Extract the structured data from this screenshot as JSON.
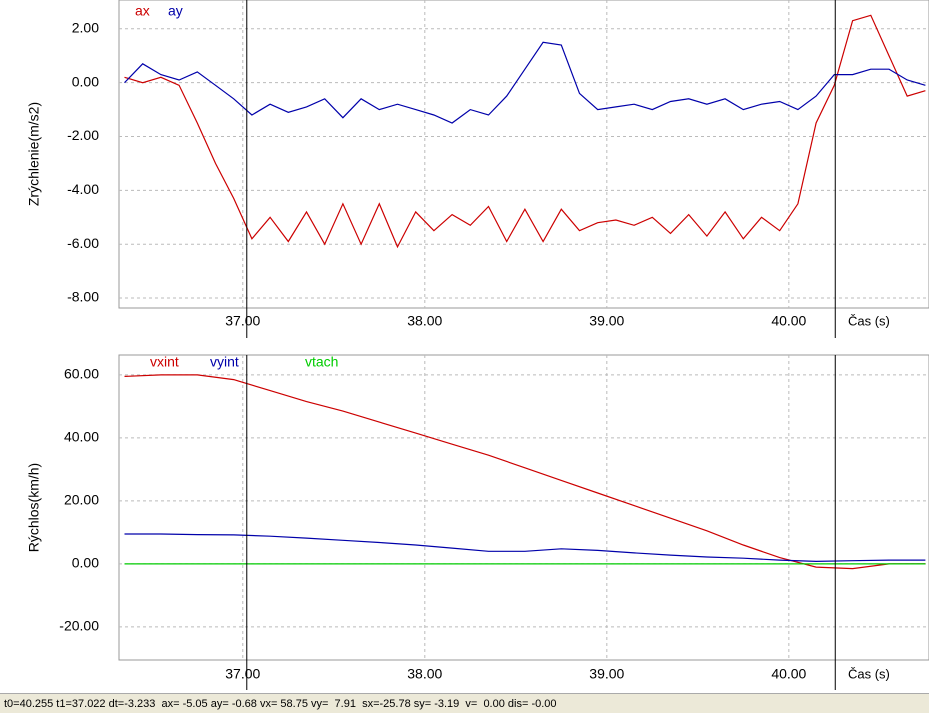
{
  "chart_data": [
    {
      "type": "line",
      "ylabel": "Zrýchlenie(m/s2)",
      "xlabel": "Čas (s)",
      "x": [
        36.35,
        36.45,
        36.55,
        36.65,
        36.75,
        36.85,
        36.95,
        37.05,
        37.15,
        37.25,
        37.35,
        37.45,
        37.55,
        37.65,
        37.75,
        37.85,
        37.95,
        38.05,
        38.15,
        38.25,
        38.35,
        38.45,
        38.55,
        38.65,
        38.75,
        38.85,
        38.95,
        39.05,
        39.15,
        39.25,
        39.35,
        39.45,
        39.55,
        39.65,
        39.75,
        39.85,
        39.95,
        40.05,
        40.15,
        40.25,
        40.35,
        40.45,
        40.55,
        40.65,
        40.75
      ],
      "series": [
        {
          "name": "ax",
          "color": "#cc0000",
          "values": [
            0.2,
            0.0,
            0.2,
            -0.1,
            -1.5,
            -3.0,
            -4.3,
            -5.8,
            -5.0,
            -5.9,
            -4.8,
            -6.0,
            -4.5,
            -6.0,
            -4.5,
            -6.1,
            -4.8,
            -5.5,
            -4.9,
            -5.3,
            -4.6,
            -5.9,
            -4.7,
            -5.9,
            -4.7,
            -5.5,
            -5.2,
            -5.1,
            -5.3,
            -5.0,
            -5.6,
            -4.9,
            -5.7,
            -4.8,
            -5.8,
            -5.0,
            -5.5,
            -4.5,
            -1.5,
            -0.1,
            2.3,
            2.5,
            1.0,
            -0.5,
            -0.3
          ]
        },
        {
          "name": "ay",
          "color": "#0000aa",
          "values": [
            0.0,
            0.7,
            0.3,
            0.1,
            0.4,
            -0.1,
            -0.6,
            -1.2,
            -0.8,
            -1.1,
            -0.9,
            -0.6,
            -1.3,
            -0.6,
            -1.0,
            -0.8,
            -1.0,
            -1.2,
            -1.5,
            -1.0,
            -1.2,
            -0.5,
            0.5,
            1.5,
            1.4,
            -0.4,
            -1.0,
            -0.9,
            -0.8,
            -1.0,
            -0.7,
            -0.6,
            -0.8,
            -0.6,
            -1.0,
            -0.8,
            -0.7,
            -1.0,
            -0.5,
            0.3,
            0.3,
            0.5,
            0.5,
            0.1,
            -0.1
          ]
        }
      ],
      "xlim": [
        36.32,
        40.77
      ],
      "xticks": [
        {
          "value": 37,
          "label": "37.00"
        },
        {
          "value": 38,
          "label": "38.00"
        },
        {
          "value": 39,
          "label": "39.00"
        },
        {
          "value": 40,
          "label": "40.00"
        }
      ],
      "ylim": [
        -8.37,
        3.07
      ],
      "yticks": [
        {
          "value": 2,
          "label": "2.00"
        },
        {
          "value": 0,
          "label": "0.00"
        },
        {
          "value": -2,
          "label": "-2.00"
        },
        {
          "value": -4,
          "label": "-4.00"
        },
        {
          "value": -6,
          "label": "-6.00"
        },
        {
          "value": -8,
          "label": "-8.00"
        }
      ],
      "cursors": [
        37.022,
        40.255
      ],
      "grid": true
    },
    {
      "type": "line",
      "ylabel": "Rýchlos(km/h)",
      "xlabel": "Čas (s)",
      "x": [
        36.35,
        36.55,
        36.75,
        36.95,
        37.15,
        37.35,
        37.55,
        37.75,
        37.95,
        38.15,
        38.35,
        38.55,
        38.75,
        38.95,
        39.15,
        39.35,
        39.55,
        39.75,
        39.95,
        40.15,
        40.35,
        40.55,
        40.75
      ],
      "series": [
        {
          "name": "vxint",
          "color": "#cc0000",
          "values": [
            59.5,
            60,
            60,
            58.5,
            55,
            51.5,
            48.5,
            45,
            41.5,
            38,
            34.5,
            30.5,
            26.5,
            22.5,
            18.5,
            14.5,
            10.5,
            6,
            2,
            -1,
            -1.5,
            0,
            0
          ]
        },
        {
          "name": "vyint",
          "color": "#0000aa",
          "values": [
            9.5,
            9.5,
            9.3,
            9.2,
            8.8,
            8.2,
            7.5,
            6.8,
            6.0,
            5.0,
            4.0,
            4.0,
            4.8,
            4.3,
            3.5,
            2.8,
            2.2,
            1.8,
            1.2,
            0.8,
            1.0,
            1.2,
            1.2
          ]
        },
        {
          "name": "vtach",
          "color": "#00cc00",
          "values": [
            0,
            0,
            0,
            0,
            0,
            0,
            0,
            0,
            0,
            0,
            0,
            0,
            0,
            0,
            0,
            0,
            0,
            0,
            0,
            0,
            0,
            0,
            0
          ]
        }
      ],
      "xlim": [
        36.32,
        40.77
      ],
      "xticks": [
        {
          "value": 37,
          "label": "37.00"
        },
        {
          "value": 38,
          "label": "38.00"
        },
        {
          "value": 39,
          "label": "39.00"
        },
        {
          "value": 40,
          "label": "40.00"
        }
      ],
      "ylim": [
        -30.5,
        66.3
      ],
      "yticks": [
        {
          "value": 60,
          "label": "60.00"
        },
        {
          "value": 40,
          "label": "40.00"
        },
        {
          "value": 20,
          "label": "20.00"
        },
        {
          "value": 0,
          "label": "0.00"
        },
        {
          "value": -20,
          "label": "-20.00"
        }
      ],
      "cursors": [
        37.022,
        40.255
      ],
      "grid": true
    }
  ],
  "status_bar": "t0=40.255 t1=37.022 dt=-3.233  ax= -5.05 ay= -0.68 vx= 58.75 vy=  7.91  sx=-25.78 sy= -3.19  v=  0.00 dis= -0.00"
}
